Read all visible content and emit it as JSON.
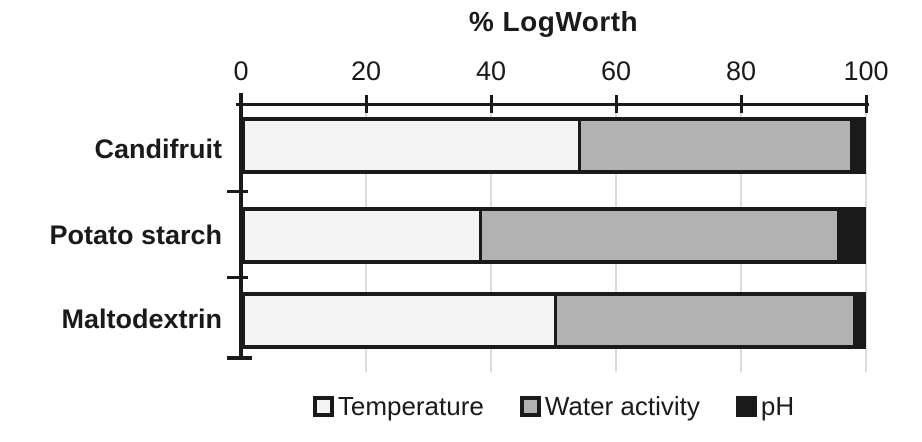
{
  "title": "% LogWorth",
  "colors": {
    "temperature": "#f4f4f4",
    "water_activity": "#b2b2b2",
    "ph": "#1a1a1a",
    "axis": "#1a1a1a",
    "gridline": "#dcdcdc",
    "background": "#ffffff",
    "text": "#1a1a1a"
  },
  "chart_data": {
    "type": "bar",
    "orientation": "horizontal",
    "stacked": true,
    "title": "% LogWorth",
    "categories": [
      "Candifruit",
      "Potato starch",
      "Maltodextrin"
    ],
    "series": [
      {
        "name": "Temperature",
        "color": "#f4f4f4",
        "values": [
          54,
          38,
          50
        ]
      },
      {
        "name": "Water activity",
        "color": "#b2b2b2",
        "values": [
          44,
          58,
          48.5
        ]
      },
      {
        "name": "pH",
        "color": "#1a1a1a",
        "values": [
          2,
          4,
          1.5
        ]
      }
    ],
    "xlim": [
      0,
      100
    ],
    "x_ticks": [
      0,
      20,
      40,
      60,
      80,
      100
    ],
    "grid": "vertical-light",
    "legend_position": "bottom"
  },
  "legend": {
    "items": [
      {
        "label": "Temperature",
        "swatch": "#f4f4f4"
      },
      {
        "label": "Water activity",
        "swatch": "#b2b2b2"
      },
      {
        "label": "pH",
        "swatch": "#1a1a1a"
      }
    ]
  }
}
